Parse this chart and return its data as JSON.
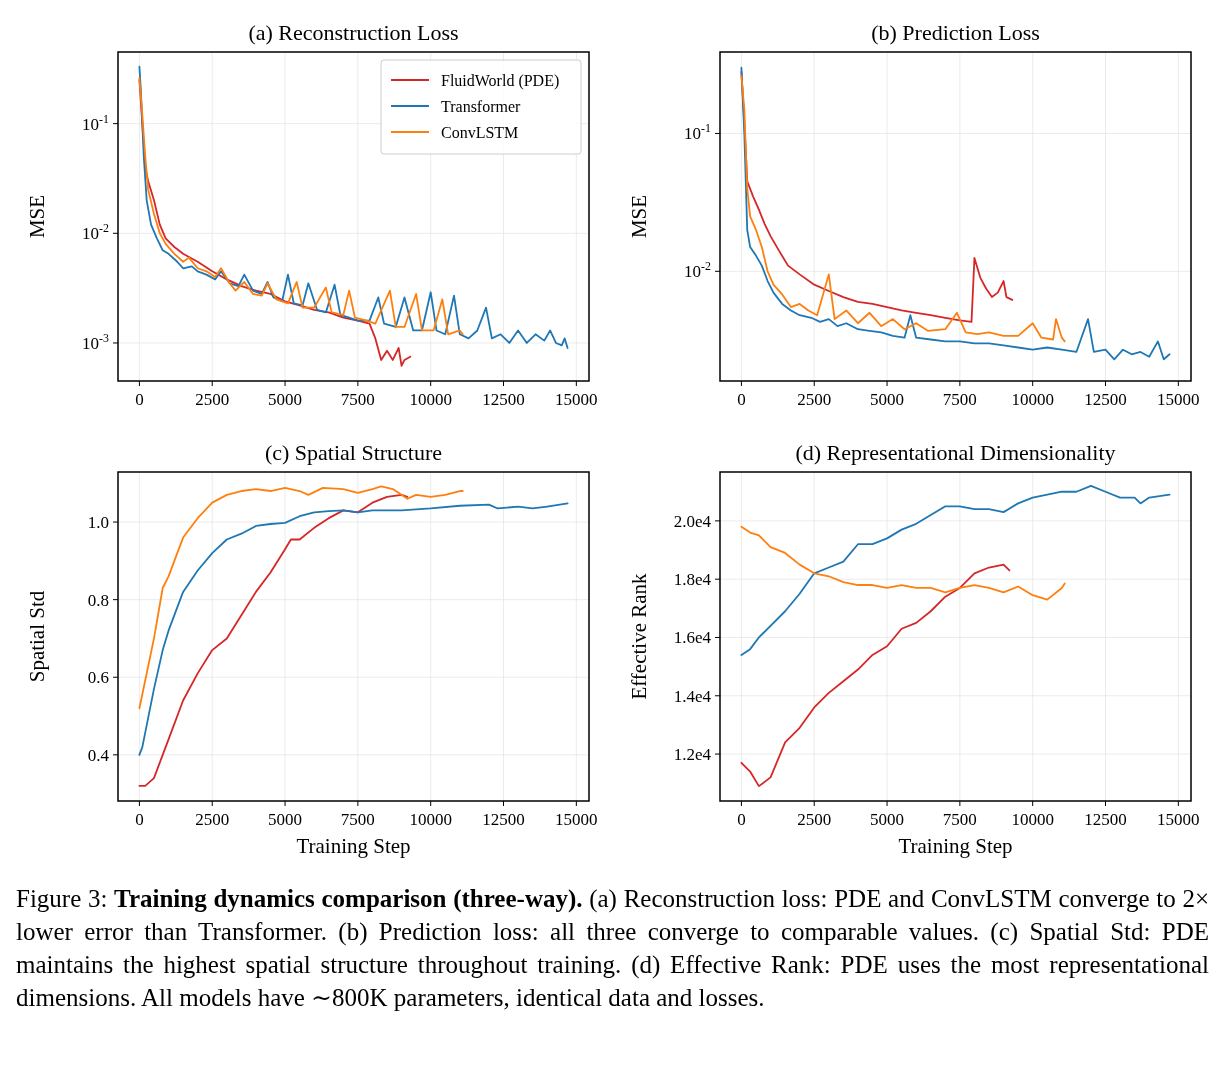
{
  "chart_data": [
    {
      "type": "line",
      "title": "(a) Reconstruction Loss",
      "ylabel": "MSE",
      "log": "y",
      "grid": true,
      "legend": "top right",
      "xlim": [
        -735,
        15435
      ],
      "ylim": [
        0.00045,
        0.45
      ],
      "xticks": [
        0,
        2500,
        5000,
        7500,
        10000,
        12500,
        15000
      ],
      "yticks": [
        {
          "value": 0.001,
          "label": "10$^{-3}$"
        },
        {
          "value": 0.01,
          "label": "10$^{-2}$"
        },
        {
          "value": 0.1,
          "label": "10$^{-1}$"
        }
      ],
      "series": [
        {
          "name": "FluidWorld (PDE)",
          "color": "#d62728",
          "x": [
            0,
            100,
            200,
            300,
            500,
            700,
            900,
            1200,
            1500,
            2000,
            2500,
            3000,
            3500,
            4000,
            4500,
            5000,
            5500,
            6000,
            6500,
            7000,
            7500,
            7900,
            8100,
            8300,
            8500,
            8700,
            8900,
            9000,
            9100,
            9300
          ],
          "values": [
            0.25,
            0.1,
            0.04,
            0.03,
            0.02,
            0.012,
            0.009,
            0.0075,
            0.0065,
            0.0055,
            0.0045,
            0.0038,
            0.0033,
            0.003,
            0.0028,
            0.0024,
            0.0022,
            0.002,
            0.0019,
            0.0017,
            0.0016,
            0.0015,
            0.0011,
            0.0007,
            0.00085,
            0.0007,
            0.0009,
            0.00062,
            0.0007,
            0.00075
          ]
        },
        {
          "name": "Transformer",
          "color": "#1f77b4",
          "x": [
            0,
            50,
            150,
            250,
            400,
            600,
            800,
            1000,
            1300,
            1500,
            1800,
            2000,
            2300,
            2600,
            2800,
            3100,
            3400,
            3600,
            3900,
            4200,
            4400,
            4600,
            4900,
            5100,
            5300,
            5600,
            5800,
            6100,
            6400,
            6700,
            6900,
            7200,
            7500,
            7900,
            8200,
            8400,
            8800,
            9100,
            9400,
            9700,
            10000,
            10200,
            10500,
            10800,
            11000,
            11300,
            11600,
            11900,
            12100,
            12400,
            12700,
            13000,
            13300,
            13600,
            13900,
            14100,
            14300,
            14500,
            14600,
            14700
          ],
          "values": [
            0.33,
            0.2,
            0.05,
            0.02,
            0.012,
            0.009,
            0.007,
            0.0065,
            0.0055,
            0.0048,
            0.005,
            0.0045,
            0.0042,
            0.0038,
            0.0045,
            0.0035,
            0.0033,
            0.0042,
            0.003,
            0.0028,
            0.0036,
            0.0026,
            0.0024,
            0.0042,
            0.0023,
            0.0022,
            0.0035,
            0.002,
            0.0019,
            0.0034,
            0.0018,
            0.0017,
            0.0016,
            0.0016,
            0.0026,
            0.0015,
            0.0014,
            0.0026,
            0.0013,
            0.0013,
            0.0029,
            0.0013,
            0.0012,
            0.0027,
            0.0012,
            0.0011,
            0.0013,
            0.0021,
            0.0011,
            0.0012,
            0.001,
            0.0013,
            0.001,
            0.0012,
            0.00105,
            0.0013,
            0.001,
            0.00095,
            0.0011,
            0.0009
          ]
        },
        {
          "name": "ConvLSTM",
          "color": "#ff7f0e",
          "x": [
            0,
            100,
            200,
            300,
            500,
            700,
            900,
            1200,
            1500,
            1700,
            2000,
            2300,
            2600,
            2800,
            3100,
            3300,
            3600,
            3900,
            4200,
            4400,
            4700,
            5100,
            5400,
            5600,
            6000,
            6400,
            6600,
            7000,
            7200,
            7400,
            7800,
            8100,
            8600,
            8800,
            9100,
            9500,
            9700,
            10100,
            10400,
            10600,
            11000,
            11100
          ],
          "values": [
            0.26,
            0.12,
            0.05,
            0.025,
            0.015,
            0.01,
            0.008,
            0.0065,
            0.0055,
            0.006,
            0.0048,
            0.0045,
            0.004,
            0.0048,
            0.0035,
            0.003,
            0.0036,
            0.0028,
            0.0027,
            0.0035,
            0.0025,
            0.0023,
            0.0036,
            0.0021,
            0.0021,
            0.0032,
            0.0019,
            0.0018,
            0.003,
            0.0017,
            0.0016,
            0.0015,
            0.003,
            0.0014,
            0.0014,
            0.0028,
            0.0013,
            0.0013,
            0.0025,
            0.0012,
            0.0013,
            0.0012
          ]
        }
      ]
    },
    {
      "type": "line",
      "title": "(b) Prediction Loss",
      "ylabel": "MSE",
      "log": "y",
      "grid": true,
      "xlim": [
        -735,
        15435
      ],
      "ylim": [
        0.0016,
        0.39
      ],
      "xticks": [
        0,
        2500,
        5000,
        7500,
        10000,
        12500,
        15000
      ],
      "yticks": [
        {
          "value": 0.01,
          "label": "10$^{-2}$"
        },
        {
          "value": 0.1,
          "label": "10$^{-1}$"
        }
      ],
      "series": [
        {
          "color": "#d62728",
          "x": [
            0,
            100,
            200,
            400,
            600,
            800,
            1000,
            1300,
            1600,
            2000,
            2500,
            3000,
            3500,
            4000,
            4500,
            5000,
            5500,
            6000,
            6500,
            7000,
            7500,
            7900,
            8000,
            8200,
            8400,
            8600,
            8800,
            9000,
            9100,
            9300
          ],
          "values": [
            0.28,
            0.12,
            0.045,
            0.035,
            0.028,
            0.022,
            0.018,
            0.014,
            0.011,
            0.0095,
            0.008,
            0.0072,
            0.0065,
            0.006,
            0.0058,
            0.0055,
            0.0052,
            0.005,
            0.0048,
            0.0046,
            0.0044,
            0.0043,
            0.0125,
            0.009,
            0.0075,
            0.0065,
            0.007,
            0.0085,
            0.0065,
            0.0062
          ]
        },
        {
          "color": "#1f77b4",
          "x": [
            0,
            100,
            200,
            300,
            500,
            700,
            900,
            1100,
            1400,
            1700,
            2000,
            2400,
            2700,
            3000,
            3300,
            3600,
            4000,
            4400,
            4800,
            5200,
            5600,
            5800,
            6000,
            6500,
            7000,
            7500,
            8000,
            8500,
            9000,
            9500,
            10000,
            10500,
            11000,
            11500,
            11900,
            12100,
            12500,
            12800,
            13100,
            13400,
            13700,
            14000,
            14300,
            14500,
            14700
          ],
          "values": [
            0.3,
            0.1,
            0.02,
            0.015,
            0.013,
            0.011,
            0.0085,
            0.007,
            0.0058,
            0.0052,
            0.0048,
            0.0046,
            0.0043,
            0.0045,
            0.004,
            0.0042,
            0.0038,
            0.0037,
            0.0036,
            0.0034,
            0.0033,
            0.0048,
            0.0033,
            0.0032,
            0.0031,
            0.0031,
            0.003,
            0.003,
            0.0029,
            0.0028,
            0.0027,
            0.0028,
            0.0027,
            0.0026,
            0.0045,
            0.0026,
            0.0027,
            0.0023,
            0.0027,
            0.0025,
            0.0026,
            0.0024,
            0.0031,
            0.0023,
            0.0025
          ]
        },
        {
          "color": "#ff7f0e",
          "x": [
            0,
            100,
            200,
            300,
            500,
            700,
            900,
            1100,
            1400,
            1700,
            2000,
            2300,
            2600,
            3000,
            3200,
            3600,
            4000,
            4400,
            4800,
            5200,
            5600,
            6000,
            6400,
            7000,
            7400,
            7700,
            8100,
            8500,
            9000,
            9500,
            10000,
            10300,
            10700,
            10800,
            11000,
            11100
          ],
          "values": [
            0.26,
            0.15,
            0.04,
            0.025,
            0.02,
            0.015,
            0.01,
            0.008,
            0.0068,
            0.0055,
            0.0058,
            0.0052,
            0.0048,
            0.0095,
            0.0045,
            0.0052,
            0.0042,
            0.005,
            0.004,
            0.0045,
            0.0038,
            0.0042,
            0.0037,
            0.0038,
            0.005,
            0.0036,
            0.0035,
            0.0036,
            0.0034,
            0.0034,
            0.0042,
            0.0033,
            0.0032,
            0.0045,
            0.0033,
            0.0031
          ]
        }
      ]
    },
    {
      "type": "line",
      "title": "(c) Spatial Structure",
      "xlabel": "Training Step",
      "ylabel": "Spatial Std",
      "grid": true,
      "xlim": [
        -735,
        15435
      ],
      "ylim": [
        0.281,
        1.129
      ],
      "xticks": [
        0,
        2500,
        5000,
        7500,
        10000,
        12500,
        15000
      ],
      "yticks": [
        {
          "value": 0.4,
          "label": "0.4"
        },
        {
          "value": 0.6,
          "label": "0.6"
        },
        {
          "value": 0.8,
          "label": "0.8"
        },
        {
          "value": 1.0,
          "label": "1.0"
        }
      ],
      "series": [
        {
          "color": "#d62728",
          "x": [
            0,
            200,
            500,
            800,
            1000,
            1500,
            2000,
            2500,
            3000,
            3500,
            4000,
            4500,
            5000,
            5200,
            5500,
            6000,
            6500,
            7000,
            7500,
            8000,
            8500,
            9000,
            9200
          ],
          "values": [
            0.32,
            0.32,
            0.34,
            0.4,
            0.44,
            0.54,
            0.61,
            0.67,
            0.7,
            0.76,
            0.82,
            0.87,
            0.93,
            0.955,
            0.955,
            0.985,
            1.01,
            1.03,
            1.025,
            1.05,
            1.065,
            1.07,
            1.065
          ]
        },
        {
          "color": "#1f77b4",
          "x": [
            0,
            100,
            500,
            800,
            1000,
            1500,
            2000,
            2500,
            3000,
            3500,
            4000,
            4500,
            5000,
            5500,
            6000,
            6500,
            7000,
            7500,
            8000,
            9000,
            10000,
            11000,
            12000,
            12300,
            13000,
            13500,
            14000,
            14700
          ],
          "values": [
            0.4,
            0.42,
            0.57,
            0.67,
            0.72,
            0.82,
            0.875,
            0.92,
            0.955,
            0.97,
            0.99,
            0.995,
            0.998,
            1.015,
            1.025,
            1.028,
            1.03,
            1.025,
            1.03,
            1.03,
            1.035,
            1.042,
            1.045,
            1.035,
            1.04,
            1.035,
            1.04,
            1.048
          ]
        },
        {
          "color": "#ff7f0e",
          "x": [
            0,
            500,
            800,
            1000,
            1500,
            2000,
            2500,
            3000,
            3500,
            4000,
            4500,
            5000,
            5500,
            5800,
            6300,
            7000,
            7500,
            8000,
            8300,
            8700,
            9200,
            9500,
            10000,
            10500,
            11000,
            11100
          ],
          "values": [
            0.52,
            0.7,
            0.83,
            0.86,
            0.96,
            1.01,
            1.05,
            1.07,
            1.08,
            1.085,
            1.08,
            1.088,
            1.08,
            1.07,
            1.088,
            1.085,
            1.075,
            1.085,
            1.092,
            1.085,
            1.06,
            1.07,
            1.065,
            1.07,
            1.08,
            1.08
          ]
        }
      ]
    },
    {
      "type": "line",
      "title": "(d) Representational Dimensionality",
      "xlabel": "Training Step",
      "ylabel": "Effective Rank",
      "grid": true,
      "xlim": [
        -735,
        15435
      ],
      "ylim": [
        10390,
        21677
      ],
      "xticks": [
        0,
        2500,
        5000,
        7500,
        10000,
        12500,
        15000
      ],
      "yticks": [
        {
          "value": 12000,
          "label": "1.2e4"
        },
        {
          "value": 14000,
          "label": "1.4e4"
        },
        {
          "value": 16000,
          "label": "1.6e4"
        },
        {
          "value": 18000,
          "label": "1.8e4"
        },
        {
          "value": 20000,
          "label": "2.0e4"
        }
      ],
      "annotations": [
        "Figure 3: ",
        "Training dynamics comparison (three-way).",
        "(a) Reconstruction loss: PDE and ConvLSTM converge to 2× lower error than Transformer. (b) Prediction loss: all three converge to comparable values. (c) Spatial Std: PDE maintains the highest spatial structure throughout training. (d) Effective Rank: PDE uses the most representational dimensions. All models have ∼800K parameters, identical data and losses."
      ],
      "series": [
        {
          "color": "#d62728",
          "x": [
            0,
            300,
            600,
            1000,
            1500,
            2000,
            2500,
            3000,
            3500,
            4000,
            4500,
            5000,
            5500,
            6000,
            6500,
            7000,
            7500,
            8000,
            8500,
            9000,
            9200
          ],
          "values": [
            11700,
            11400,
            10900,
            11200,
            12400,
            12900,
            13600,
            14100,
            14500,
            14900,
            15400,
            15700,
            16300,
            16500,
            16900,
            17400,
            17700,
            18200,
            18400,
            18500,
            18300
          ]
        },
        {
          "color": "#1f77b4",
          "x": [
            0,
            300,
            600,
            1000,
            1500,
            2000,
            2500,
            3000,
            3500,
            4000,
            4500,
            5000,
            5500,
            6000,
            6500,
            7000,
            7500,
            8000,
            8500,
            9000,
            9500,
            10000,
            10500,
            11000,
            11500,
            12000,
            12500,
            13000,
            13500,
            13700,
            14000,
            14700
          ],
          "values": [
            15400,
            15600,
            16000,
            16400,
            16900,
            17500,
            18200,
            18400,
            18600,
            19200,
            19200,
            19400,
            19700,
            19900,
            20200,
            20500,
            20500,
            20400,
            20400,
            20300,
            20600,
            20800,
            20900,
            21000,
            21000,
            21200,
            21000,
            20800,
            20800,
            20600,
            20800,
            20900
          ]
        },
        {
          "color": "#ff7f0e",
          "x": [
            0,
            300,
            600,
            1000,
            1500,
            2000,
            2500,
            3000,
            3500,
            4000,
            4500,
            5000,
            5500,
            6000,
            6500,
            7000,
            7500,
            8000,
            8500,
            9000,
            9500,
            10000,
            10500,
            11000,
            11100
          ],
          "values": [
            19800,
            19600,
            19500,
            19100,
            18900,
            18500,
            18200,
            18100,
            17900,
            17800,
            17800,
            17700,
            17800,
            17700,
            17700,
            17550,
            17700,
            17800,
            17700,
            17550,
            17750,
            17450,
            17300,
            17700,
            17850
          ]
        }
      ]
    }
  ]
}
